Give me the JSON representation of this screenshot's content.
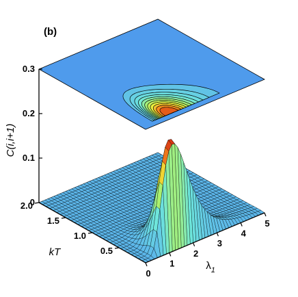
{
  "chart_data": {
    "type": "surface3d",
    "panel_label": "(b)",
    "zlabel": "C(i,i+1)",
    "xlabel": "λ",
    "xlabel_sub": "1",
    "ylabel": "kT",
    "xlim": [
      0,
      5
    ],
    "ylim": [
      0,
      2.0
    ],
    "zlim": [
      0,
      0.3
    ],
    "x_ticks": [
      "0",
      "1",
      "2",
      "3",
      "4",
      "5"
    ],
    "y_ticks": [
      "0.5",
      "1.0",
      "1.5",
      "2.0"
    ],
    "z_ticks": [
      "0",
      "0.1",
      "0.2",
      "0.3"
    ],
    "peak": {
      "x": 1.3,
      "y": 0.1,
      "z": 0.25
    },
    "contour_levels": [
      0.02,
      0.04,
      0.06,
      0.08,
      0.1,
      0.12,
      0.14,
      0.16,
      0.18,
      0.2,
      0.22
    ],
    "colors": {
      "plane": "#4f9bec",
      "surface_low": "#5cb6ea",
      "surface_high": "#cc1410",
      "mesh": "#000000"
    }
  }
}
